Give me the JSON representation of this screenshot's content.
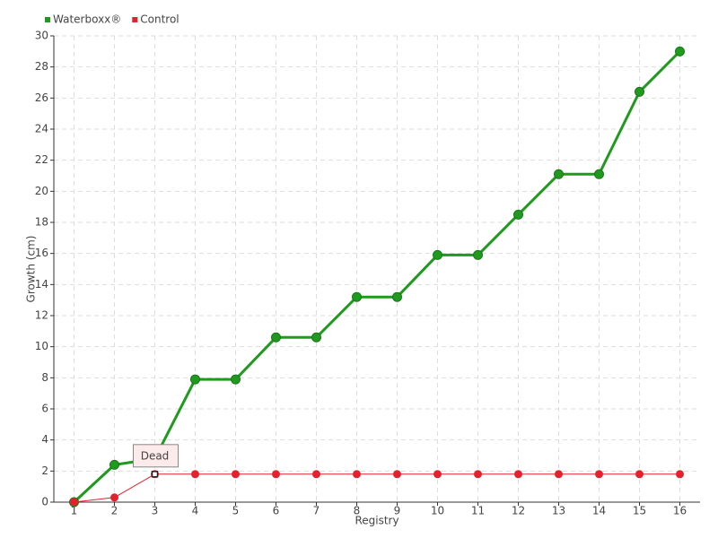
{
  "chart_data": {
    "type": "line",
    "xlabel": "Registry",
    "ylabel": "Growth (cm)",
    "x": [
      1,
      2,
      3,
      4,
      5,
      6,
      7,
      8,
      9,
      10,
      11,
      12,
      13,
      14,
      15,
      16
    ],
    "series": [
      {
        "name": "Waterboxx®",
        "color": "#1f9a1f",
        "values": [
          0,
          2.4,
          2.8,
          7.9,
          7.9,
          10.6,
          10.6,
          13.2,
          13.2,
          15.9,
          15.9,
          18.5,
          21.1,
          21.1,
          26.4,
          29.0
        ]
      },
      {
        "name": "Control",
        "color": "#e3222d",
        "values": [
          0,
          0.3,
          1.8,
          1.8,
          1.8,
          1.8,
          1.8,
          1.8,
          1.8,
          1.8,
          1.8,
          1.8,
          1.8,
          1.8,
          1.8,
          1.8
        ]
      }
    ],
    "annotations": [
      {
        "label": "Dead",
        "x": 3,
        "y": 1.8
      }
    ],
    "xlim": [
      0.5,
      16.5
    ],
    "xticks": [
      1,
      2,
      3,
      4,
      5,
      6,
      7,
      8,
      9,
      10,
      11,
      12,
      13,
      14,
      15,
      16
    ],
    "ylim": [
      0,
      30
    ],
    "yticks": [
      0,
      2,
      4,
      6,
      8,
      10,
      12,
      14,
      16,
      18,
      20,
      22,
      24,
      26,
      28,
      30
    ],
    "grid": true,
    "legend": "top-left"
  }
}
